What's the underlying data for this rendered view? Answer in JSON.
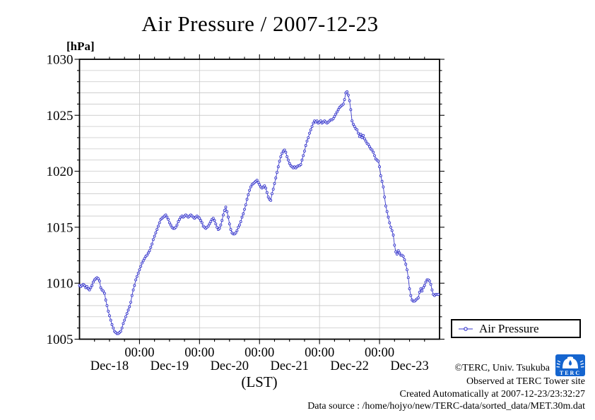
{
  "title": "Air Pressure / 2007-12-23",
  "y_axis": {
    "unit_label": "[hPa]",
    "tick_labels": [
      "1005",
      "1010",
      "1015",
      "1020",
      "1025",
      "1030"
    ]
  },
  "x_axis": {
    "label": "(LST)",
    "time_tick_labels": [
      "00:00",
      "00:00",
      "00:00",
      "00:00",
      "00:00"
    ],
    "day_labels": [
      "Dec-18",
      "Dec-19",
      "Dec-20",
      "Dec-21",
      "Dec-22",
      "Dec-23"
    ]
  },
  "legend": {
    "label": "Air Pressure"
  },
  "footer": {
    "copyright": "©TERC, Univ. Tsukuba",
    "observed": "Observed at TERC Tower site",
    "created": "Created Automatically at 2007-12-23/23:32:27",
    "data_source": "Data source : /home/hojyo/new/TERC-data/sorted_data/MET.30m.dat",
    "logo_text": "TERC"
  },
  "colors": {
    "series": "#3838cc",
    "grid": "#c8c8c8",
    "axis": "#000000",
    "logo": "#1565cf"
  },
  "chart_data": {
    "type": "line",
    "title": "Air Pressure / 2007-12-23",
    "xlabel": "(LST)",
    "ylabel": "hPa",
    "ylim": [
      1005,
      1030
    ],
    "y_major_step": 5,
    "y_minor_step": 1,
    "x_start": "2007-12-18 00:00",
    "x_end": "2007-12-23 23:30",
    "interval_minutes": 30,
    "x_minor_step_hours": 6,
    "x_major_step_hours": 24,
    "grid": true,
    "legend_position": "outside-bottom-right",
    "x_days": [
      "Dec-18",
      "Dec-19",
      "Dec-20",
      "Dec-21",
      "Dec-22",
      "Dec-23"
    ],
    "series": [
      {
        "name": "Air Pressure",
        "unit": "hPa",
        "values": [
          1009.8,
          1009.7,
          1009.8,
          1009.9,
          1009.8,
          1009.6,
          1009.7,
          1009.5,
          1009.4,
          1009.6,
          1009.8,
          1010.1,
          1010.3,
          1010.4,
          1010.5,
          1010.4,
          1010.2,
          1009.6,
          1009.4,
          1009.3,
          1009.1,
          1008.5,
          1008.0,
          1007.5,
          1007.1,
          1006.7,
          1006.3,
          1006.0,
          1005.7,
          1005.6,
          1005.5,
          1005.5,
          1005.6,
          1005.7,
          1006.0,
          1006.4,
          1006.7,
          1007.0,
          1007.3,
          1007.6,
          1007.9,
          1008.3,
          1008.9,
          1009.4,
          1009.8,
          1010.3,
          1010.6,
          1010.9,
          1011.2,
          1011.5,
          1011.8,
          1012.0,
          1012.2,
          1012.4,
          1012.5,
          1012.7,
          1012.9,
          1013.2,
          1013.5,
          1013.9,
          1014.2,
          1014.5,
          1014.8,
          1015.1,
          1015.4,
          1015.7,
          1015.8,
          1015.9,
          1016.0,
          1016.1,
          1015.9,
          1015.7,
          1015.4,
          1015.2,
          1015.0,
          1014.9,
          1014.9,
          1015.0,
          1015.2,
          1015.5,
          1015.7,
          1015.9,
          1016.0,
          1015.9,
          1016.0,
          1016.1,
          1016.0,
          1015.9,
          1016.0,
          1016.1,
          1016.0,
          1015.9,
          1015.8,
          1015.9,
          1016.0,
          1015.9,
          1015.8,
          1015.6,
          1015.4,
          1015.1,
          1015.0,
          1014.9,
          1015.0,
          1015.1,
          1015.3,
          1015.5,
          1015.7,
          1015.8,
          1015.6,
          1015.3,
          1015.0,
          1014.8,
          1014.9,
          1015.2,
          1015.6,
          1016.1,
          1016.5,
          1016.8,
          1016.4,
          1015.9,
          1015.3,
          1014.8,
          1014.5,
          1014.4,
          1014.4,
          1014.5,
          1014.7,
          1015.0,
          1015.2,
          1015.5,
          1015.9,
          1016.2,
          1016.6,
          1017.0,
          1017.5,
          1017.9,
          1018.3,
          1018.6,
          1018.8,
          1018.9,
          1019.0,
          1019.1,
          1019.2,
          1019.0,
          1018.8,
          1018.6,
          1018.5,
          1018.6,
          1018.7,
          1018.5,
          1018.1,
          1017.7,
          1017.5,
          1017.4,
          1018.0,
          1018.4,
          1018.9,
          1019.4,
          1019.9,
          1020.4,
          1020.9,
          1021.3,
          1021.6,
          1021.8,
          1021.9,
          1021.7,
          1021.3,
          1021.0,
          1020.7,
          1020.5,
          1020.4,
          1020.3,
          1020.4,
          1020.3,
          1020.4,
          1020.5,
          1020.5,
          1020.6,
          1021.0,
          1021.4,
          1021.8,
          1022.3,
          1022.7,
          1023.0,
          1023.4,
          1023.7,
          1024.0,
          1024.3,
          1024.5,
          1024.4,
          1024.5,
          1024.3,
          1024.4,
          1024.5,
          1024.3,
          1024.4,
          1024.5,
          1024.4,
          1024.3,
          1024.4,
          1024.5,
          1024.6,
          1024.6,
          1024.7,
          1024.9,
          1025.1,
          1025.3,
          1025.5,
          1025.7,
          1025.8,
          1025.9,
          1026.0,
          1026.4,
          1027.0,
          1027.1,
          1026.8,
          1026.3,
          1025.5,
          1024.5,
          1024.2,
          1024.0,
          1023.8,
          1023.7,
          1023.4,
          1023.1,
          1023.3,
          1023.0,
          1023.2,
          1022.9,
          1022.7,
          1022.5,
          1022.4,
          1022.2,
          1022.0,
          1021.9,
          1021.7,
          1021.4,
          1021.1,
          1021.0,
          1020.9,
          1020.4,
          1019.6,
          1019.1,
          1018.6,
          1017.7,
          1016.9,
          1016.4,
          1015.9,
          1015.4,
          1015.0,
          1014.7,
          1014.3,
          1013.4,
          1012.8,
          1012.6,
          1012.9,
          1012.7,
          1012.5,
          1012.5,
          1012.4,
          1012.1,
          1011.7,
          1011.2,
          1010.5,
          1009.5,
          1008.9,
          1008.5,
          1008.4,
          1008.4,
          1008.5,
          1008.6,
          1008.7,
          1009.2,
          1009.5,
          1009.3,
          1009.6,
          1009.8,
          1010.1,
          1010.3,
          1010.3,
          1010.2,
          1009.9,
          1009.4,
          1009.0,
          1008.9,
          1009.0,
          1009.0,
          1009.0
        ]
      }
    ]
  }
}
